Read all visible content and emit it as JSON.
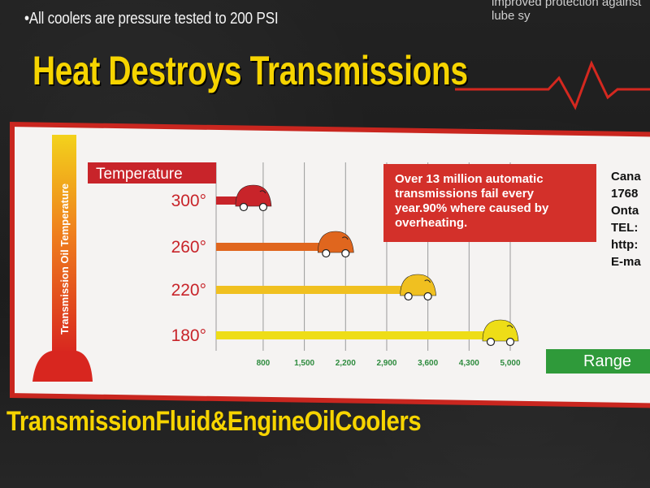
{
  "top": {
    "bullet": "•All coolers are pressure tested to 200 PSI",
    "right_partial": "improved protection against lube sy"
  },
  "headline": "Heat Destroys Transmissions",
  "note": "Over 13 million automatic transmissions fail every year.90% where caused by overheating.",
  "side_text": [
    "Cana",
    "1768",
    "Onta",
    "TEL:",
    "http:",
    "E-ma"
  ],
  "range_label": "Range",
  "footer": "TransmissionFluid&EngineOilCoolers",
  "colors": {
    "panel_red": "#c9261f",
    "headline_yellow": "#f6d400",
    "bar_300": "#c8242a",
    "bar_260": "#e0661e",
    "bar_220": "#f0c020",
    "bar_180": "#eedd17",
    "range_green": "#2f9a3a"
  },
  "chart_data": {
    "type": "bar",
    "orientation": "horizontal",
    "legend_title": "Temperature",
    "ylabel": "Transmission Oil Temperature",
    "categories": [
      "300°",
      "260°",
      "220°",
      "180°"
    ],
    "values": [
      800,
      2200,
      3600,
      5000
    ],
    "xticks": [
      "800",
      "1,500",
      "2,200",
      "2,900",
      "3,600",
      "4,300",
      "5,000"
    ],
    "xtick_values": [
      800,
      1500,
      2200,
      2900,
      3600,
      4300,
      5000
    ],
    "xlim": [
      0,
      5000
    ],
    "grid": true
  }
}
